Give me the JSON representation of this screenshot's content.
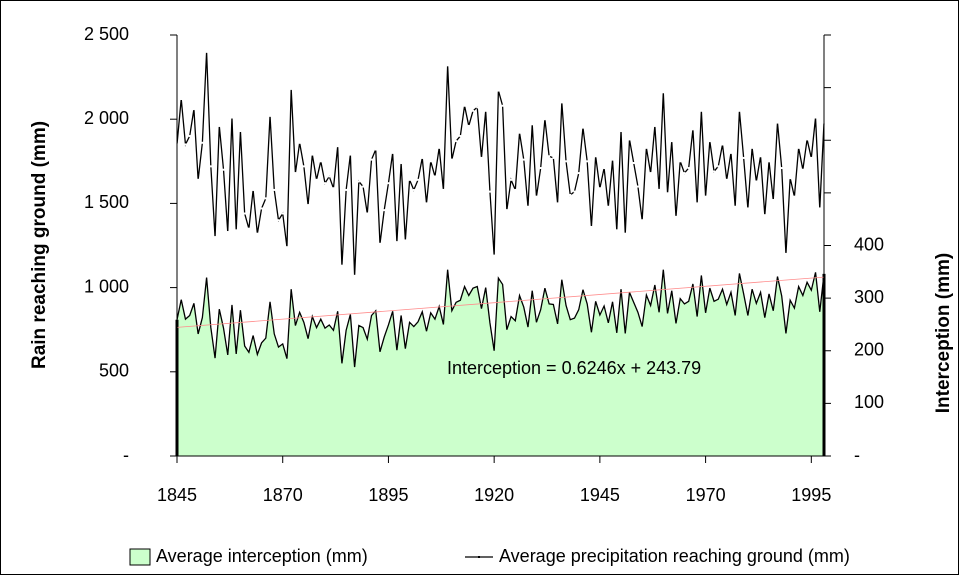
{
  "chart_data": {
    "type": "area-line",
    "grid": false,
    "y_label": "Rain reaching ground (mm)",
    "y2_label": "Interception (mm)",
    "annotation": "Interception = 0.6246x + 243.79",
    "trendline": {
      "slope": 0.6246,
      "intercept": 243.79,
      "axis": "y2",
      "color": "#ff8c8c"
    },
    "xlim": [
      1845,
      1998
    ],
    "xticks": [
      1845,
      1870,
      1895,
      1920,
      1945,
      1970,
      1995
    ],
    "ylim": [
      0,
      2500
    ],
    "yticks": [
      {
        "value": 0,
        "label": "-"
      },
      500,
      {
        "value": 1000,
        "label": "1 000"
      },
      {
        "value": 1500,
        "label": "1 500"
      },
      {
        "value": 2000,
        "label": "2 000"
      },
      {
        "value": 2500,
        "label": "2 500"
      }
    ],
    "y2lim": [
      0,
      800
    ],
    "y2ticks": [
      {
        "value": 0,
        "label": "-"
      },
      100,
      200,
      300,
      400
    ],
    "x": [
      1845,
      1846,
      1847,
      1848,
      1849,
      1850,
      1851,
      1852,
      1853,
      1854,
      1855,
      1856,
      1857,
      1858,
      1859,
      1860,
      1861,
      1862,
      1863,
      1864,
      1865,
      1866,
      1867,
      1868,
      1869,
      1870,
      1871,
      1872,
      1873,
      1874,
      1875,
      1876,
      1877,
      1878,
      1879,
      1880,
      1881,
      1882,
      1883,
      1884,
      1885,
      1886,
      1887,
      1888,
      1889,
      1890,
      1891,
      1892,
      1893,
      1894,
      1895,
      1896,
      1897,
      1898,
      1899,
      1900,
      1901,
      1902,
      1903,
      1904,
      1905,
      1906,
      1907,
      1908,
      1909,
      1910,
      1911,
      1912,
      1913,
      1914,
      1915,
      1916,
      1917,
      1918,
      1919,
      1920,
      1921,
      1922,
      1923,
      1924,
      1925,
      1926,
      1927,
      1928,
      1929,
      1930,
      1931,
      1932,
      1933,
      1934,
      1935,
      1936,
      1937,
      1938,
      1939,
      1940,
      1941,
      1942,
      1943,
      1944,
      1945,
      1946,
      1947,
      1948,
      1949,
      1950,
      1951,
      1952,
      1953,
      1954,
      1955,
      1956,
      1957,
      1958,
      1959,
      1960,
      1961,
      1962,
      1963,
      1964,
      1965,
      1966,
      1967,
      1968,
      1969,
      1970,
      1971,
      1972,
      1973,
      1974,
      1975,
      1976,
      1977,
      1978,
      1979,
      1980,
      1981,
      1982,
      1983,
      1984,
      1985,
      1986,
      1987,
      1988,
      1989,
      1990,
      1991,
      1992,
      1993,
      1994,
      1995,
      1996,
      1997,
      1998
    ],
    "series": [
      {
        "name": "Average interception (mm)",
        "kind": "area",
        "axis": "y2",
        "color": "#ccffcc",
        "values": [
          259,
          297,
          260,
          267,
          290,
          232,
          263,
          339,
          244,
          186,
          279,
          243,
          192,
          287,
          194,
          277,
          209,
          197,
          229,
          193,
          215,
          224,
          293,
          232,
          207,
          213,
          185,
          317,
          248,
          273,
          254,
          223,
          265,
          244,
          260,
          243,
          249,
          239,
          275,
          176,
          239,
          269,
          169,
          248,
          244,
          222,
          267,
          276,
          198,
          226,
          249,
          275,
          201,
          267,
          204,
          254,
          246,
          255,
          274,
          237,
          272,
          260,
          284,
          250,
          354,
          276,
          292,
          296,
          322,
          305,
          319,
          322,
          280,
          320,
          253,
          200,
          338,
          326,
          240,
          265,
          257,
          305,
          283,
          245,
          314,
          254,
          278,
          319,
          289,
          288,
          251,
          335,
          286,
          259,
          262,
          278,
          316,
          289,
          235,
          294,
          268,
          285,
          253,
          293,
          234,
          317,
          233,
          311,
          292,
          273,
          246,
          306,
          286,
          325,
          273,
          354,
          271,
          314,
          252,
          299,
          289,
          294,
          327,
          265,
          343,
          272,
          319,
          294,
          298,
          317,
          288,
          311,
          267,
          347,
          308,
          267,
          317,
          290,
          311,
          263,
          308,
          276,
          341,
          304,
          233,
          296,
          281,
          322,
          305,
          330,
          315,
          349,
          274,
          346
        ]
      },
      {
        "name": "Average precipitation reaching ground (mm)",
        "kind": "line",
        "color": "#000000",
        "values": [
          1850,
          2120,
          1850,
          1900,
          2060,
          1640,
          1860,
          2400,
          1720,
          1300,
          1960,
          1700,
          1330,
          2010,
          1340,
          1930,
          1440,
          1350,
          1580,
          1320,
          1470,
          1530,
          2020,
          1580,
          1400,
          1440,
          1240,
          2180,
          1680,
          1860,
          1720,
          1490,
          1790,
          1640,
          1750,
          1620,
          1660,
          1590,
          1840,
          1130,
          1580,
          1790,
          1070,
          1630,
          1600,
          1440,
          1760,
          1820,
          1260,
          1460,
          1620,
          1800,
          1270,
          1740,
          1280,
          1640,
          1580,
          1640,
          1770,
          1500,
          1750,
          1660,
          1830,
          1580,
          2320,
          1760,
          1870,
          1900,
          2080,
          1960,
          2050,
          2070,
          1770,
          2050,
          1570,
          1190,
          2170,
          2080,
          1460,
          1640,
          1580,
          1920,
          1760,
          1480,
          1970,
          1540,
          1710,
          2000,
          1780,
          1770,
          1500,
          2100,
          1750,
          1550,
          1570,
          1680,
          1950,
          1750,
          1360,
          1780,
          1590,
          1710,
          1480,
          1760,
          1340,
          1930,
          1320,
          1880,
          1740,
          1600,
          1400,
          1830,
          1680,
          1960,
          1580,
          2160,
          1560,
          1870,
          1420,
          1750,
          1680,
          1710,
          1940,
          1500,
          2050,
          1540,
          1870,
          1690,
          1720,
          1850,
          1640,
          1800,
          1480,
          2050,
          1770,
          1470,
          1830,
          1630,
          1780,
          1430,
          1750,
          1520,
          1980,
          1710,
          1200,
          1650,
          1540,
          1830,
          1700,
          1880,
          1770,
          2010,
          1470,
          1980
        ]
      }
    ]
  }
}
